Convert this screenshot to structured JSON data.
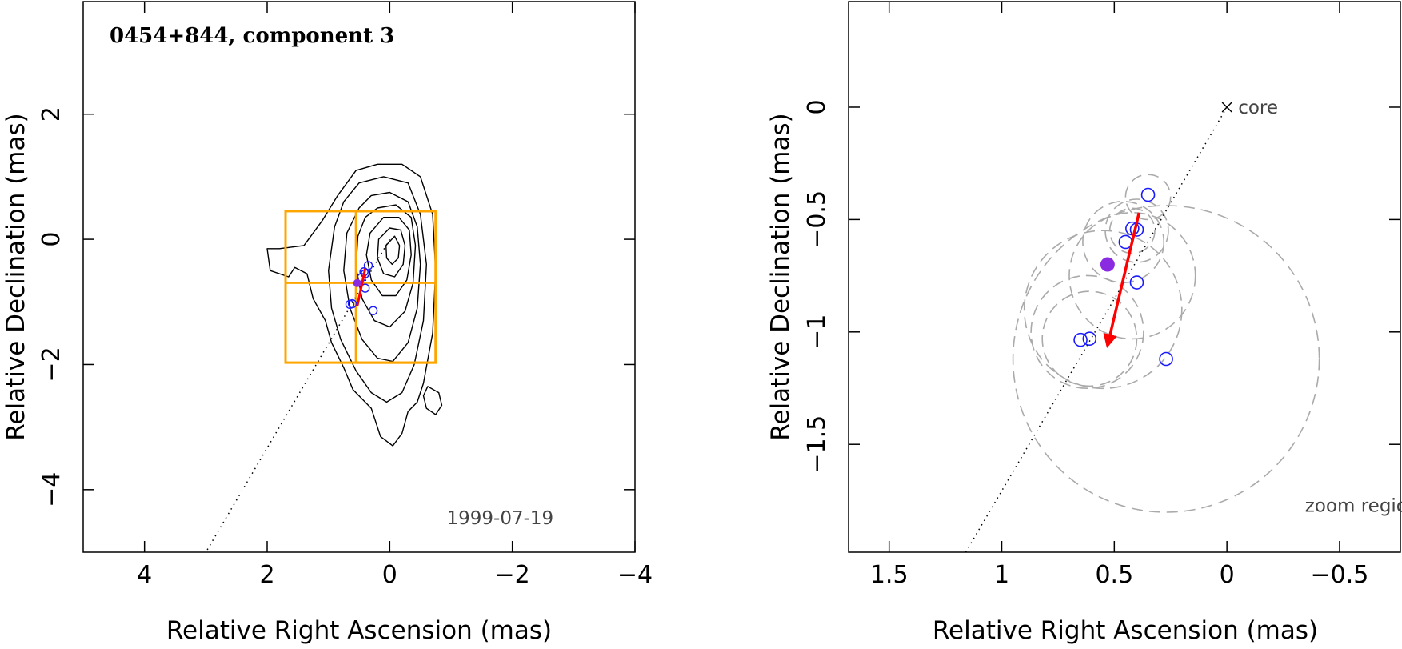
{
  "chart_data": [
    {
      "type": "scatter",
      "title": "0454+844, component 3",
      "xlabel": "Relative Right Ascension (mas)",
      "ylabel": "Relative Declination (mas)",
      "xlim": [
        5,
        -4
      ],
      "ylim": [
        -5,
        3.8
      ],
      "xticks": [
        4,
        2,
        0,
        -2,
        -4
      ],
      "xtick_labels": [
        "4",
        "2",
        "0",
        "−2",
        "−4"
      ],
      "yticks": [
        2,
        0,
        -2,
        -4
      ],
      "ytick_labels": [
        "2",
        "0",
        "−2",
        "−4"
      ],
      "grid": false,
      "annotations": [
        {
          "text": "1999-07-19",
          "x": -1.8,
          "y": -4.55
        }
      ],
      "contours": [
        {
          "points": [
            [
              0.55,
              1.1
            ],
            [
              0.2,
              1.2
            ],
            [
              -0.2,
              1.2
            ],
            [
              -0.5,
              1.0
            ],
            [
              -0.7,
              0.4
            ],
            [
              -0.75,
              -0.5
            ],
            [
              -0.7,
              -1.5
            ],
            [
              -0.55,
              -2.3
            ],
            [
              -0.45,
              -2.6
            ],
            [
              -0.3,
              -2.75
            ],
            [
              -0.2,
              -3.1
            ],
            [
              -0.05,
              -3.3
            ],
            [
              0.15,
              -3.15
            ],
            [
              0.3,
              -2.7
            ],
            [
              0.6,
              -2.4
            ],
            [
              0.75,
              -2.05
            ],
            [
              0.95,
              -1.65
            ],
            [
              1.05,
              -1.3
            ],
            [
              1.25,
              -0.95
            ],
            [
              1.35,
              -0.55
            ],
            [
              1.55,
              -0.45
            ],
            [
              1.65,
              -0.6
            ],
            [
              1.95,
              -0.5
            ],
            [
              2.0,
              -0.15
            ],
            [
              1.8,
              -0.15
            ],
            [
              1.4,
              -0.1
            ],
            [
              1.1,
              0.3
            ],
            [
              0.85,
              0.7
            ]
          ]
        },
        {
          "points": [
            [
              0.5,
              0.9
            ],
            [
              0.1,
              1.0
            ],
            [
              -0.3,
              0.9
            ],
            [
              -0.5,
              0.4
            ],
            [
              -0.6,
              -0.4
            ],
            [
              -0.55,
              -1.3
            ],
            [
              -0.4,
              -2.0
            ],
            [
              -0.2,
              -2.45
            ],
            [
              0.05,
              -2.6
            ],
            [
              0.3,
              -2.45
            ],
            [
              0.55,
              -2.1
            ],
            [
              0.8,
              -1.6
            ],
            [
              0.95,
              -1.1
            ],
            [
              1.0,
              -0.5
            ],
            [
              0.9,
              0.2
            ],
            [
              0.75,
              0.6
            ]
          ]
        },
        {
          "points": [
            [
              0.3,
              0.7
            ],
            [
              0.0,
              0.75
            ],
            [
              -0.3,
              0.6
            ],
            [
              -0.45,
              0.2
            ],
            [
              -0.5,
              -0.4
            ],
            [
              -0.45,
              -1.1
            ],
            [
              -0.3,
              -1.65
            ],
            [
              -0.05,
              -1.95
            ],
            [
              0.2,
              -1.9
            ],
            [
              0.45,
              -1.6
            ],
            [
              0.65,
              -1.1
            ],
            [
              0.75,
              -0.5
            ],
            [
              0.7,
              0.1
            ],
            [
              0.5,
              0.5
            ]
          ]
        },
        {
          "points": [
            [
              0.2,
              0.5
            ],
            [
              -0.1,
              0.55
            ],
            [
              -0.35,
              0.35
            ],
            [
              -0.42,
              -0.1
            ],
            [
              -0.38,
              -0.7
            ],
            [
              -0.25,
              -1.15
            ],
            [
              0.0,
              -1.4
            ],
            [
              0.25,
              -1.3
            ],
            [
              0.45,
              -0.95
            ],
            [
              0.55,
              -0.45
            ],
            [
              0.52,
              0.05
            ],
            [
              0.4,
              0.35
            ]
          ]
        },
        {
          "points": [
            [
              0.1,
              0.35
            ],
            [
              -0.15,
              0.35
            ],
            [
              -0.32,
              0.15
            ],
            [
              -0.35,
              -0.25
            ],
            [
              -0.28,
              -0.65
            ],
            [
              -0.1,
              -0.9
            ],
            [
              0.12,
              -0.9
            ],
            [
              0.3,
              -0.65
            ],
            [
              0.38,
              -0.25
            ],
            [
              0.32,
              0.1
            ]
          ]
        },
        {
          "points": [
            [
              0.0,
              0.18
            ],
            [
              -0.18,
              0.15
            ],
            [
              -0.25,
              -0.1
            ],
            [
              -0.22,
              -0.4
            ],
            [
              -0.08,
              -0.6
            ],
            [
              0.1,
              -0.55
            ],
            [
              0.2,
              -0.3
            ],
            [
              0.18,
              0.0
            ]
          ]
        },
        {
          "points": [
            [
              -0.08,
              0.05
            ],
            [
              -0.16,
              -0.1
            ],
            [
              -0.14,
              -0.3
            ],
            [
              -0.04,
              -0.4
            ],
            [
              0.05,
              -0.3
            ],
            [
              0.06,
              -0.1
            ]
          ]
        },
        {
          "points": [
            [
              -0.62,
              -2.35
            ],
            [
              -0.8,
              -2.45
            ],
            [
              -0.85,
              -2.65
            ],
            [
              -0.75,
              -2.8
            ],
            [
              -0.6,
              -2.7
            ],
            [
              -0.55,
              -2.5
            ]
          ]
        }
      ],
      "boxes": [
        {
          "x0": 1.7,
          "x1": -0.75,
          "y0": -1.97,
          "y1": 0.45
        },
        {
          "x0": 0.55,
          "x1": -0.75,
          "y0": -1.97,
          "y1": 0.45
        }
      ],
      "hline": {
        "x0": 1.7,
        "x1": -0.75,
        "y": -0.7
      },
      "jet_axis": {
        "x0": 0,
        "y0": 0,
        "x1": 3.0,
        "y1": -5.0
      },
      "components": [
        {
          "x": 0.35,
          "y": -0.42
        },
        {
          "x": 0.4,
          "y": -0.55
        },
        {
          "x": 0.42,
          "y": -0.52
        },
        {
          "x": 0.46,
          "y": -0.61
        },
        {
          "x": 0.4,
          "y": -0.78
        },
        {
          "x": 0.61,
          "y": -1.03
        },
        {
          "x": 0.65,
          "y": -1.04
        },
        {
          "x": 0.27,
          "y": -1.14
        }
      ],
      "mean_point": {
        "x": 0.53,
        "y": -0.7
      },
      "motion": {
        "x0": 0.4,
        "y0": -0.47,
        "x1": 0.53,
        "y1": -1.07
      }
    },
    {
      "type": "scatter",
      "title": "",
      "xlabel": "Relative Right Ascension (mas)",
      "ylabel": "Relative Declination (mas)",
      "xlim": [
        1.68,
        -0.77
      ],
      "ylim": [
        -1.98,
        0.47
      ],
      "xticks": [
        1.5,
        1,
        0.5,
        0,
        -0.5
      ],
      "xtick_labels": [
        "1.5",
        "1",
        "0.5",
        "0",
        "−0.5"
      ],
      "yticks": [
        0,
        -0.5,
        -1,
        -1.5
      ],
      "ytick_labels": [
        "0",
        "−0.5",
        "−1",
        "−1.5"
      ],
      "grid": false,
      "annotations": [
        {
          "text": "core",
          "x": -0.05,
          "y": 0.0
        },
        {
          "text": "zoom region",
          "x": -0.6,
          "y": -1.8
        }
      ],
      "core": {
        "x": 0,
        "y": 0
      },
      "jet_axis": {
        "x0": 0,
        "y0": 0,
        "x1": 1.16,
        "y1": -1.98
      },
      "components": [
        {
          "x": 0.35,
          "y": -0.39
        },
        {
          "x": 0.4,
          "y": -0.545
        },
        {
          "x": 0.42,
          "y": -0.54
        },
        {
          "x": 0.45,
          "y": -0.6
        },
        {
          "x": 0.4,
          "y": -0.78
        },
        {
          "x": 0.61,
          "y": -1.03
        },
        {
          "x": 0.65,
          "y": -1.035
        },
        {
          "x": 0.27,
          "y": -1.12
        }
      ],
      "mean_point": {
        "x": 0.53,
        "y": -0.7
      },
      "motion": {
        "x0": 0.39,
        "y0": -0.47,
        "x1": 0.53,
        "y1": -1.06
      },
      "uncertainty_circles": [
        {
          "x": 0.35,
          "y": -0.4,
          "r": 0.1
        },
        {
          "x": 0.4,
          "y": -0.55,
          "r": 0.14
        },
        {
          "x": 0.42,
          "y": -0.55,
          "r": 0.1
        },
        {
          "x": 0.46,
          "y": -0.6,
          "r": 0.18
        },
        {
          "x": 0.42,
          "y": -0.75,
          "r": 0.28
        },
        {
          "x": 0.55,
          "y": -0.9,
          "r": 0.35
        },
        {
          "x": 0.61,
          "y": -1.03,
          "r": 0.21
        },
        {
          "x": 0.62,
          "y": -1.0,
          "r": 0.25
        },
        {
          "x": 0.27,
          "y": -1.12,
          "r": 0.68
        }
      ]
    }
  ]
}
